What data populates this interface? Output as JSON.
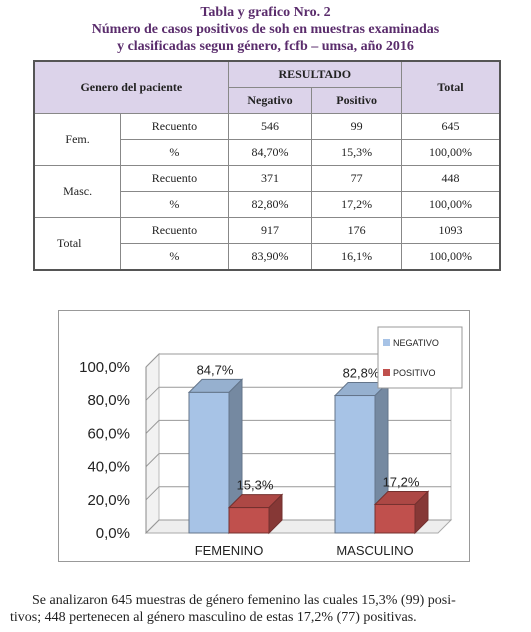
{
  "title": [
    "Tabla y grafico Nro. 2",
    "Número de casos positivos de soh en muestras examinadas",
    "y clasificadas segun género, fcfb – umsa, año 2016"
  ],
  "table": {
    "header": {
      "patient": "Genero del paciente",
      "result": "RESULTADO",
      "total": "Total",
      "negative": "Negativo",
      "positive": "Positivo"
    },
    "groups": [
      {
        "label": "Fem.",
        "rows": [
          [
            "Recuento",
            "546",
            "99",
            "645"
          ],
          [
            "%",
            "84,70%",
            "15,3%",
            "100,00%"
          ]
        ]
      },
      {
        "label": "Masc.",
        "rows": [
          [
            "Recuento",
            "371",
            "77",
            "448"
          ],
          [
            "%",
            "82,80%",
            "17,2%",
            "100,00%"
          ]
        ]
      },
      {
        "label": "Total",
        "rows": [
          [
            "Recuento",
            "917",
            "176",
            "1093"
          ],
          [
            "%",
            "83,90%",
            "16,1%",
            "100,00%"
          ]
        ]
      }
    ]
  },
  "chart_data": {
    "type": "bar",
    "categories": [
      "FEMENINO",
      "MASCULINO"
    ],
    "series": [
      {
        "name": "NEGATIVO",
        "color": "#a7c3e6",
        "values": [
          84.7,
          82.8
        ],
        "value_labels": [
          "84,7%",
          "82,8%"
        ]
      },
      {
        "name": "POSITIVO",
        "color": "#c0504d",
        "values": [
          15.3,
          17.2
        ],
        "value_labels": [
          "15,3%",
          "17,2%"
        ]
      }
    ],
    "ylim": [
      0,
      100
    ],
    "yticks": [
      {
        "value": 0,
        "label": "0,0%"
      },
      {
        "value": 20,
        "label": "20,0%"
      },
      {
        "value": 40,
        "label": "40,0%"
      },
      {
        "value": 60,
        "label": "60,0%"
      },
      {
        "value": 80,
        "label": "80,0%"
      },
      {
        "value": 100,
        "label": "100,0%"
      }
    ],
    "grid": true,
    "legend": "top-right"
  },
  "paragraph": [
    "Se analizaron 645 muestras de género femenino las cuales 15,3% (99) posi-",
    "tivos; 448 pertenecen al género masculino de estas 17,2% (77) positivas."
  ]
}
